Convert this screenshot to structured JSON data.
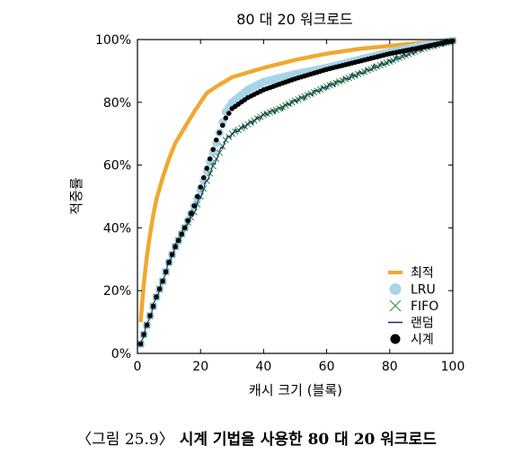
{
  "chart_data": {
    "type": "line",
    "title": "80 대 20 워크로드",
    "xlabel": "캐시 크기 (블록)",
    "ylabel": "적중률",
    "xlim": [
      0,
      100
    ],
    "ylim": [
      0,
      100
    ],
    "xticks": [
      "0",
      "20",
      "40",
      "60",
      "80",
      "100"
    ],
    "yticks": [
      "0%",
      "20%",
      "40%",
      "60%",
      "80%",
      "100%"
    ],
    "legend_position": "bottom-right",
    "legend": [
      "최적",
      "LRU",
      "FIFO",
      "랜덤",
      "시계"
    ],
    "series": [
      {
        "name": "최적",
        "color": "#f0a830",
        "marker": "line",
        "x": [
          1,
          2,
          3,
          4,
          5,
          6,
          8,
          10,
          12,
          15,
          18,
          20,
          22,
          25,
          30,
          35,
          40,
          50,
          60,
          70,
          80,
          90,
          100
        ],
        "y": [
          10,
          22,
          31,
          38,
          44,
          49,
          56,
          62,
          67,
          72,
          77,
          80,
          83,
          85,
          88,
          89.5,
          91,
          93.5,
          95.5,
          97,
          98,
          99,
          99.6
        ]
      },
      {
        "name": "LRU",
        "color": "#a8d4e8",
        "marker": "circle",
        "x": [
          1,
          2,
          3,
          4,
          5,
          6,
          8,
          10,
          12,
          15,
          18,
          20,
          22,
          25,
          28,
          30,
          35,
          40,
          50,
          60,
          70,
          80,
          90,
          100
        ],
        "y": [
          3,
          6,
          9,
          12,
          15,
          18,
          23,
          29,
          34,
          40,
          47,
          52,
          58,
          67,
          77,
          80,
          84,
          86.5,
          89,
          91,
          93.5,
          96,
          98,
          99.6
        ]
      },
      {
        "name": "FIFO",
        "color": "#2e8b2e",
        "marker": "x",
        "x": [
          1,
          2,
          3,
          4,
          5,
          6,
          8,
          10,
          12,
          15,
          18,
          20,
          22,
          25,
          28,
          30,
          35,
          40,
          45,
          50,
          60,
          70,
          80,
          90,
          100
        ],
        "y": [
          3,
          6,
          9,
          12,
          15,
          18,
          23,
          29,
          34,
          40,
          45,
          50,
          55,
          62,
          68,
          70,
          73,
          76,
          78,
          80.5,
          85,
          89,
          93,
          97,
          99.6
        ]
      },
      {
        "name": "랜덤",
        "color": "#1a237e",
        "marker": "line",
        "x": [
          1,
          2,
          3,
          4,
          5,
          6,
          8,
          10,
          12,
          15,
          18,
          20,
          22,
          25,
          28,
          30,
          35,
          40,
          45,
          50,
          60,
          70,
          80,
          90,
          100
        ],
        "y": [
          3,
          6,
          9,
          12,
          15,
          18,
          23,
          29,
          34,
          40,
          45,
          50,
          55,
          62,
          68,
          70,
          73,
          76,
          78,
          80.5,
          85,
          89,
          93,
          97,
          99.6
        ]
      },
      {
        "name": "시계",
        "color": "#000000",
        "marker": "circle",
        "x": [
          1,
          2,
          3,
          4,
          5,
          6,
          8,
          10,
          12,
          15,
          18,
          20,
          22,
          25,
          28,
          30,
          35,
          40,
          50,
          60,
          70,
          80,
          90,
          100
        ],
        "y": [
          3,
          6,
          9,
          12,
          15,
          18,
          23,
          29,
          34,
          40,
          47,
          53,
          59,
          68,
          75,
          78,
          81.5,
          84,
          87.5,
          90.5,
          93,
          95.5,
          97.5,
          99.6
        ]
      }
    ]
  },
  "caption": {
    "label": "〈그림 25.9〉",
    "title": "시계 기법을 사용한 80 대 20 워크로드"
  }
}
